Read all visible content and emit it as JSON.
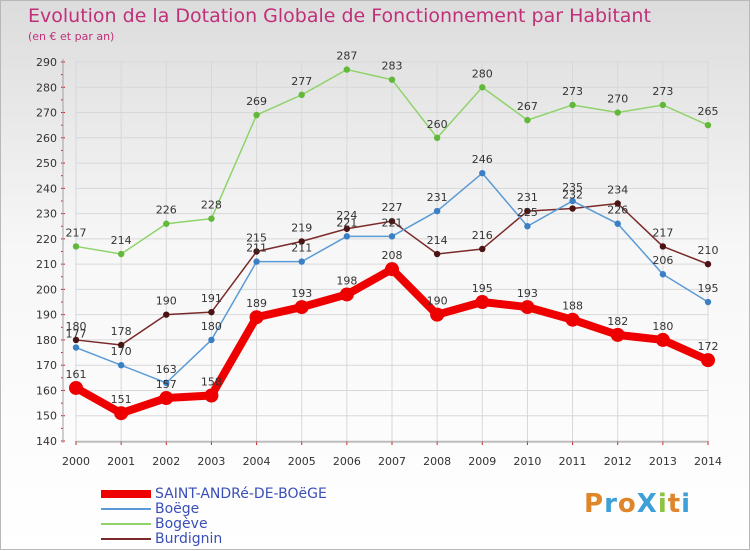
{
  "header": {
    "title": "Evolution de la Dotation Globale de Fonctionnement par Habitant",
    "subtitle": "(en € et par an)"
  },
  "logo": {
    "text": "ProXiti",
    "colors": [
      "#e0862a",
      "#3da0d8",
      "#e0862a",
      "#3da0d8",
      "#8cc43f",
      "#e0862a",
      "#3da0d8"
    ]
  },
  "colors": {
    "title": "#c0307a",
    "grid": "#d8d8d8",
    "axis": "#a0a0a0",
    "tick_marks": "#cc2222"
  },
  "chart_data": {
    "type": "line",
    "x": [
      "2000",
      "2001",
      "2002",
      "2003",
      "2004",
      "2005",
      "2006",
      "2007",
      "2008",
      "2009",
      "2010",
      "2011",
      "2012",
      "2013",
      "2014"
    ],
    "ylim": [
      140,
      290
    ],
    "yticks": [
      140,
      150,
      160,
      170,
      180,
      190,
      200,
      210,
      220,
      230,
      240,
      250,
      260,
      270,
      280,
      290
    ],
    "grid": true,
    "legend_position": "bottom-left",
    "series": [
      {
        "name": "SAINT-ANDRé-DE-BOëGE",
        "color": "#ee0000",
        "width": 8,
        "values": [
          161,
          151,
          157,
          158,
          189,
          193,
          198,
          208,
          190,
          195,
          193,
          188,
          182,
          180,
          172
        ],
        "labels": [
          "161",
          "151",
          "157",
          "158",
          "189",
          "193",
          "198",
          "208",
          "190",
          "195",
          "193",
          "188",
          "182",
          "180",
          "172"
        ]
      },
      {
        "name": "Boëge",
        "color": "#5b9bd5",
        "width": 1.5,
        "values": [
          177,
          170,
          163,
          180,
          211,
          211,
          221,
          221,
          231,
          246,
          225,
          235,
          226,
          206,
          195
        ],
        "labels": [
          "177",
          "170",
          "163",
          "180",
          "211",
          "211",
          "221",
          "221",
          "231",
          "246",
          "225",
          "235",
          "226",
          "206",
          "195"
        ]
      },
      {
        "name": "Bogève",
        "color": "#8fd36a",
        "width": 1.5,
        "values": [
          217,
          214,
          226,
          228,
          269,
          277,
          287,
          283,
          260,
          280,
          267,
          273,
          270,
          273,
          265
        ],
        "labels": [
          "217",
          "214",
          "226",
          "228",
          "269",
          "277",
          "287",
          "283",
          "260",
          "280",
          "267",
          "273",
          "270",
          "273",
          "265"
        ]
      },
      {
        "name": "Burdignin",
        "color": "#7a2a2a",
        "width": 1.5,
        "values": [
          180,
          178,
          190,
          191,
          215,
          219,
          224,
          227,
          214,
          216,
          231,
          232,
          234,
          217,
          210
        ],
        "labels": [
          "180",
          "178",
          "190",
          "191",
          "215",
          "219",
          "224",
          "227",
          "214",
          "216",
          "231",
          "232",
          "234",
          "217",
          "210"
        ]
      }
    ]
  }
}
